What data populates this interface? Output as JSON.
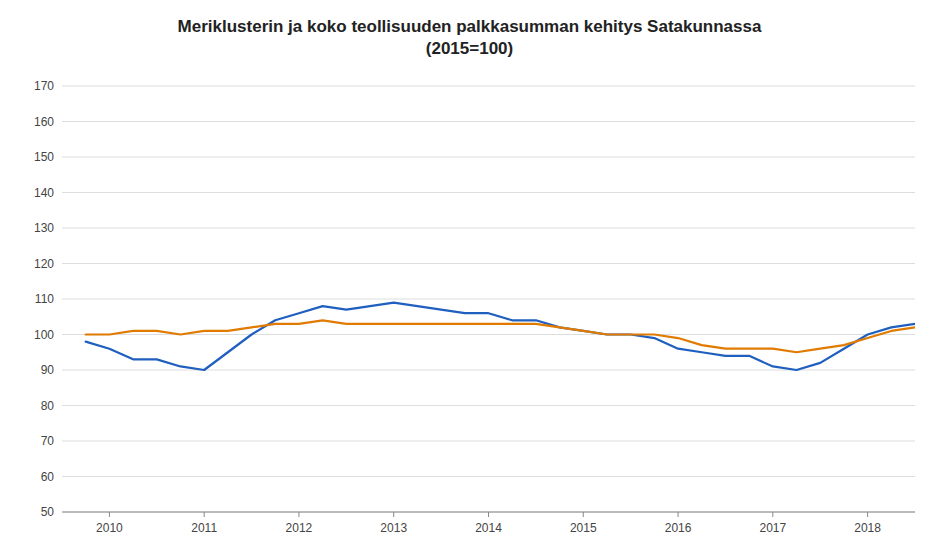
{
  "chart_data": {
    "type": "line",
    "title": "Meriklusterin ja koko teollisuuden palkkasumman kehitys Satakunnassa\n(2015=100)",
    "x": [
      2009.75,
      2010.0,
      2010.25,
      2010.5,
      2010.75,
      2011.0,
      2011.25,
      2011.5,
      2011.75,
      2012.0,
      2012.25,
      2012.5,
      2012.75,
      2013.0,
      2013.25,
      2013.5,
      2013.75,
      2014.0,
      2014.25,
      2014.5,
      2014.75,
      2015.0,
      2015.25,
      2015.5,
      2015.75,
      2016.0,
      2016.25,
      2016.5,
      2016.75,
      2017.0,
      2017.25,
      2017.5,
      2017.75,
      2018.0,
      2018.25,
      2018.5
    ],
    "series": [
      {
        "values": [
          98,
          96,
          93,
          93,
          91,
          90,
          95,
          100,
          104,
          106,
          108,
          107,
          108,
          109,
          108,
          107,
          106,
          106,
          104,
          104,
          102,
          101,
          100,
          100,
          99,
          96,
          95,
          94,
          94,
          91,
          90,
          92,
          96,
          100,
          102,
          103
        ]
      },
      {
        "values": [
          100,
          100,
          101,
          101,
          100,
          101,
          101,
          102,
          103,
          103,
          104,
          103,
          103,
          103,
          103,
          103,
          103,
          103,
          103,
          103,
          102,
          101,
          100,
          100,
          100,
          99,
          97,
          96,
          96,
          96,
          95,
          96,
          97,
          99,
          101,
          102
        ]
      }
    ],
    "xlim": [
      2009.5,
      2018.5
    ],
    "xticks": [
      2010,
      2011,
      2012,
      2013,
      2014,
      2015,
      2016,
      2017,
      2018
    ],
    "ylim": [
      50,
      170
    ],
    "yticks": [
      50,
      60,
      70,
      80,
      90,
      100,
      110,
      120,
      130,
      140,
      150,
      160,
      170
    ],
    "grid": true
  }
}
